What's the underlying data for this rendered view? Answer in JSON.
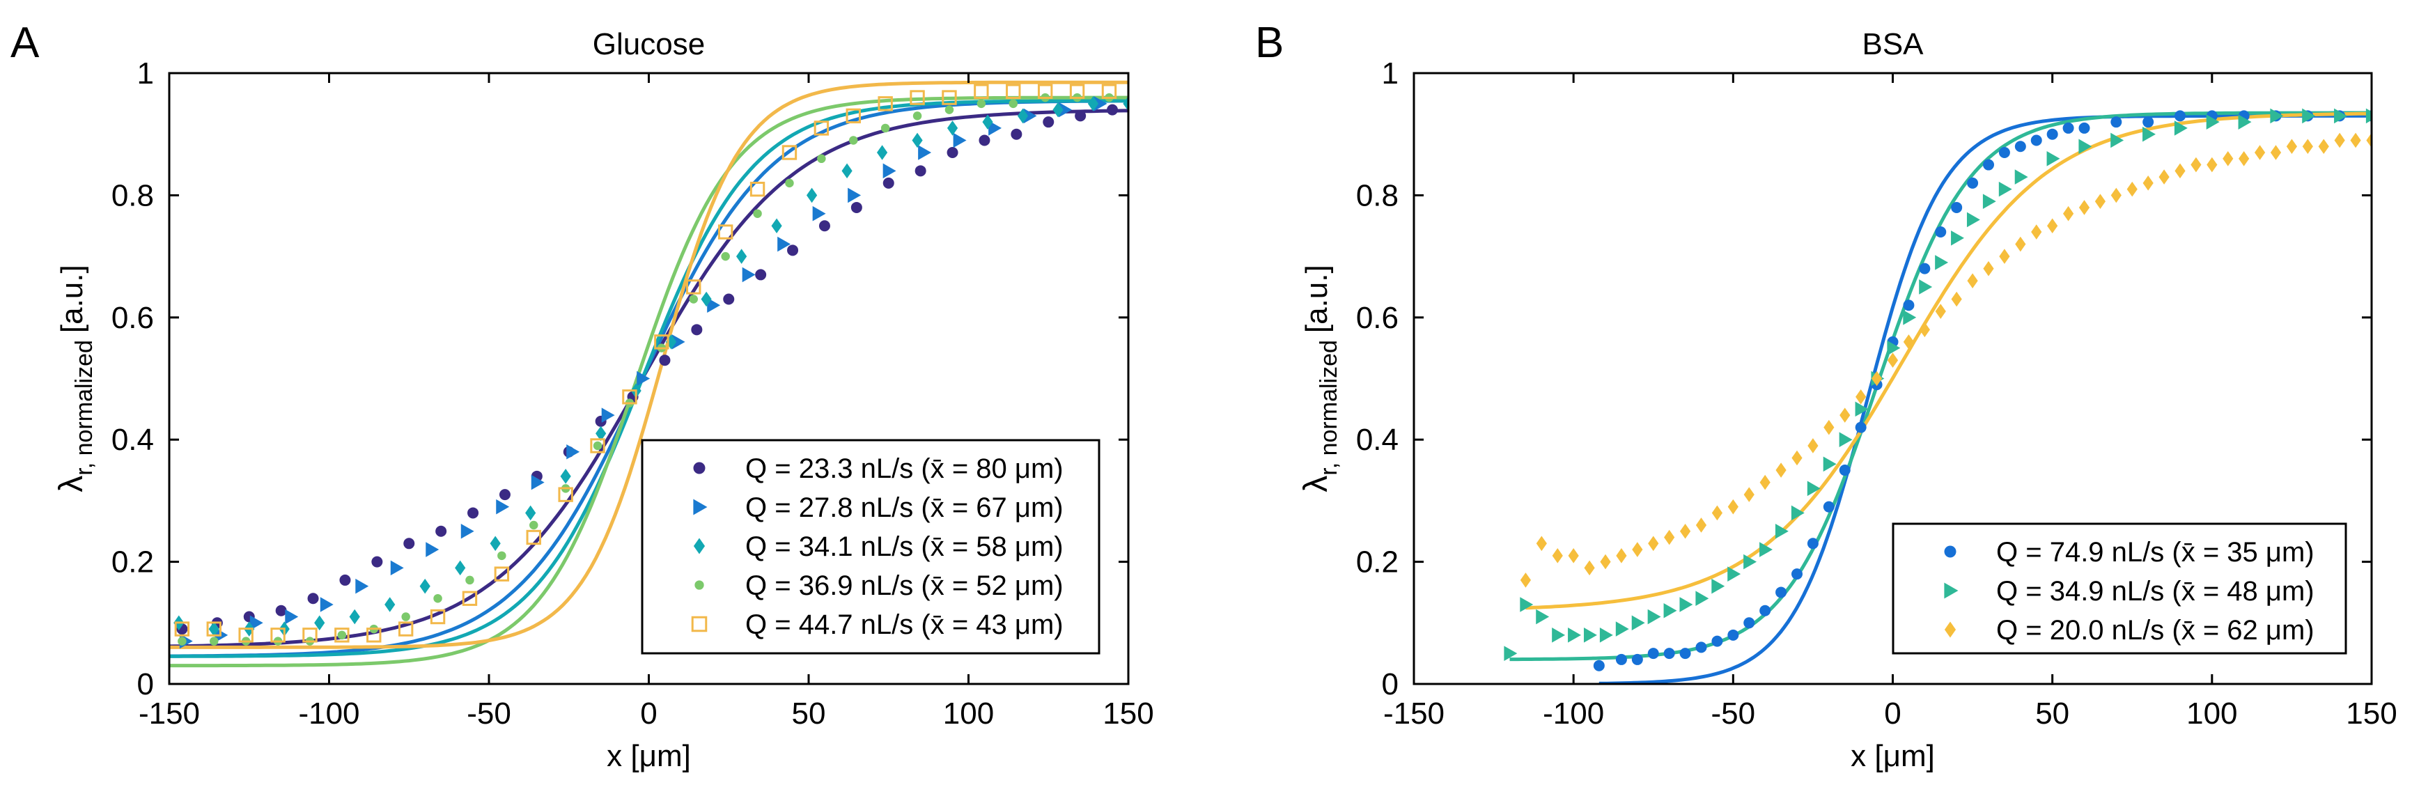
{
  "colors": {
    "c1": "#3B2A84",
    "c2": "#1A7AD0",
    "c3": "#12A8B3",
    "c4": "#7CC96B",
    "c5": "#F2B84A",
    "b1": "#1670D6",
    "b2": "#2FB897",
    "b3": "#F6BE3C"
  },
  "chart_data": [
    {
      "panel_label": "A",
      "type": "scatter",
      "title": "Glucose",
      "xlabel": "x [μm]",
      "ylabel_main": "λ",
      "ylabel_sub": "r, normalized",
      "ylabel_unit": "[a.u.]",
      "xlim": [
        -150,
        150
      ],
      "ylim": [
        0,
        1
      ],
      "xticks": [
        -150,
        -100,
        -50,
        0,
        50,
        100,
        150
      ],
      "yticks": [
        0,
        0.2,
        0.4,
        0.6,
        0.8,
        1
      ],
      "xtick_labels": [
        "-150",
        "-100",
        "-50",
        "0",
        "50",
        "100",
        "150"
      ],
      "ytick_labels": [
        "0",
        "0.2",
        "0.4",
        "0.6",
        "0.8",
        "1"
      ],
      "legend_position": "bottom-right",
      "series": [
        {
          "name": "Q = 23.3 nL/s (x̄ = 80 μm)",
          "marker": "circle",
          "color_key": "c1",
          "fit": {
            "lo": 0.06,
            "hi": 0.94,
            "x0": -2,
            "w": 52
          },
          "x": [
            -146,
            -135,
            -125,
            -115,
            -105,
            -95,
            -85,
            -75,
            -65,
            -55,
            -45,
            -35,
            -25,
            -15,
            -5,
            5,
            15,
            25,
            35,
            45,
            55,
            65,
            75,
            85,
            95,
            105,
            115,
            125,
            135,
            145
          ],
          "y": [
            0.09,
            0.1,
            0.11,
            0.12,
            0.14,
            0.17,
            0.2,
            0.23,
            0.25,
            0.28,
            0.31,
            0.34,
            0.38,
            0.43,
            0.47,
            0.53,
            0.58,
            0.63,
            0.67,
            0.71,
            0.75,
            0.78,
            0.82,
            0.84,
            0.87,
            0.89,
            0.9,
            0.92,
            0.93,
            0.94
          ]
        },
        {
          "name": "Q = 27.8 nL/s (x̄ = 67 μm)",
          "marker": "triangle-right",
          "color_key": "c2",
          "fit": {
            "lo": 0.045,
            "hi": 0.955,
            "x0": -2,
            "w": 44
          },
          "x": [
            -145,
            -134,
            -123,
            -112,
            -101,
            -90,
            -79,
            -68,
            -57,
            -46,
            -35,
            -24,
            -13,
            -2,
            9,
            20,
            31,
            42,
            53,
            64,
            75,
            86,
            97,
            108,
            119,
            130,
            141
          ],
          "y": [
            0.07,
            0.08,
            0.1,
            0.11,
            0.13,
            0.16,
            0.19,
            0.22,
            0.25,
            0.29,
            0.33,
            0.38,
            0.44,
            0.5,
            0.56,
            0.62,
            0.67,
            0.72,
            0.77,
            0.8,
            0.84,
            0.87,
            0.89,
            0.91,
            0.93,
            0.94,
            0.95
          ]
        },
        {
          "name": "Q = 34.1 nL/s (x̄ = 58 μm)",
          "marker": "diamond",
          "color_key": "c3",
          "fit": {
            "lo": 0.045,
            "hi": 0.955,
            "x0": -2,
            "w": 38
          },
          "x": [
            -147,
            -136,
            -125,
            -114,
            -103,
            -92,
            -81,
            -70,
            -59,
            -48,
            -37,
            -26,
            -15,
            -4,
            7,
            18,
            29,
            40,
            51,
            62,
            73,
            84,
            95,
            106,
            117,
            128,
            139,
            150
          ],
          "y": [
            0.1,
            0.09,
            0.09,
            0.09,
            0.1,
            0.11,
            0.13,
            0.16,
            0.19,
            0.23,
            0.28,
            0.34,
            0.41,
            0.48,
            0.56,
            0.63,
            0.7,
            0.75,
            0.8,
            0.84,
            0.87,
            0.89,
            0.91,
            0.92,
            0.93,
            0.94,
            0.95,
            0.95
          ]
        },
        {
          "name": "Q = 36.9 nL/s (x̄ = 52 μm)",
          "marker": "dot",
          "color_key": "c4",
          "fit": {
            "lo": 0.03,
            "hi": 0.96,
            "x0": -4,
            "w": 33
          },
          "x": [
            -146,
            -136,
            -126,
            -116,
            -106,
            -96,
            -86,
            -76,
            -66,
            -56,
            -46,
            -36,
            -26,
            -16,
            -6,
            4,
            14,
            24,
            34,
            44,
            54,
            64,
            74,
            84,
            94,
            104,
            114,
            124,
            134,
            144
          ],
          "y": [
            0.07,
            0.07,
            0.07,
            0.07,
            0.07,
            0.08,
            0.09,
            0.11,
            0.14,
            0.17,
            0.21,
            0.26,
            0.32,
            0.39,
            0.46,
            0.55,
            0.63,
            0.7,
            0.77,
            0.82,
            0.86,
            0.89,
            0.91,
            0.93,
            0.94,
            0.95,
            0.95,
            0.96,
            0.96,
            0.96
          ]
        },
        {
          "name": "Q = 44.7 nL/s (x̄ = 43 μm)",
          "marker": "square",
          "color_key": "c5",
          "fit": {
            "lo": 0.06,
            "hi": 0.985,
            "x0": 4,
            "w": 27
          },
          "x": [
            -146,
            -136,
            -126,
            -116,
            -106,
            -96,
            -86,
            -76,
            -66,
            -56,
            -46,
            -36,
            -26,
            -16,
            -6,
            4,
            14,
            24,
            34,
            44,
            54,
            64,
            74,
            84,
            94,
            104,
            114,
            124,
            134,
            144
          ],
          "y": [
            0.09,
            0.09,
            0.08,
            0.08,
            0.08,
            0.08,
            0.08,
            0.09,
            0.11,
            0.14,
            0.18,
            0.24,
            0.31,
            0.39,
            0.47,
            0.56,
            0.65,
            0.74,
            0.81,
            0.87,
            0.91,
            0.93,
            0.95,
            0.96,
            0.96,
            0.97,
            0.97,
            0.97,
            0.97,
            0.97
          ]
        }
      ]
    },
    {
      "panel_label": "B",
      "type": "scatter",
      "title": "BSA",
      "xlabel": "x [μm]",
      "ylabel_main": "λ",
      "ylabel_sub": "r, normalized",
      "ylabel_unit": "[a.u.]",
      "xlim": [
        -150,
        150
      ],
      "ylim": [
        0,
        1
      ],
      "xticks": [
        -150,
        -100,
        -50,
        0,
        50,
        100,
        150
      ],
      "yticks": [
        0,
        0.2,
        0.4,
        0.6,
        0.8,
        1
      ],
      "xtick_labels": [
        "-150",
        "-100",
        "-50",
        "0",
        "50",
        "100",
        "150"
      ],
      "ytick_labels": [
        "0",
        "0.2",
        "0.4",
        "0.6",
        "0.8",
        "1"
      ],
      "legend_position": "bottom-right",
      "series": [
        {
          "name": "Q = 74.9 nL/s (x̄ = 35 μm)",
          "marker": "circle",
          "color_key": "b1",
          "fit": {
            "lo": 0.0,
            "hi": 0.93,
            "x0": -8,
            "w": 26,
            "xmin": -92
          },
          "x": [
            -92,
            -85,
            -80,
            -75,
            -70,
            -65,
            -60,
            -55,
            -50,
            -45,
            -40,
            -35,
            -30,
            -25,
            -20,
            -15,
            -10,
            -5,
            0,
            5,
            10,
            15,
            20,
            25,
            30,
            35,
            40,
            45,
            50,
            55,
            60,
            70,
            80,
            90,
            100,
            110,
            120,
            130,
            140,
            150
          ],
          "y": [
            0.03,
            0.04,
            0.04,
            0.05,
            0.05,
            0.05,
            0.06,
            0.07,
            0.08,
            0.1,
            0.12,
            0.15,
            0.18,
            0.23,
            0.29,
            0.35,
            0.42,
            0.49,
            0.56,
            0.62,
            0.68,
            0.74,
            0.78,
            0.82,
            0.85,
            0.87,
            0.88,
            0.89,
            0.9,
            0.91,
            0.91,
            0.92,
            0.92,
            0.93,
            0.93,
            0.93,
            0.93,
            0.93,
            0.93,
            0.93
          ]
        },
        {
          "name": "Q = 34.9 nL/s (x̄ = 48 μm)",
          "marker": "triangle-right",
          "color_key": "b2",
          "fit": {
            "lo": 0.04,
            "hi": 0.935,
            "x0": -5,
            "w": 32,
            "xmin": -120
          },
          "x": [
            -120,
            -115,
            -110,
            -105,
            -100,
            -95,
            -90,
            -85,
            -80,
            -75,
            -70,
            -65,
            -60,
            -55,
            -50,
            -45,
            -40,
            -35,
            -30,
            -25,
            -20,
            -15,
            -10,
            -5,
            0,
            5,
            10,
            15,
            20,
            25,
            30,
            35,
            40,
            50,
            60,
            70,
            80,
            90,
            100,
            110,
            120,
            130,
            140,
            150
          ],
          "y": [
            0.05,
            0.13,
            0.11,
            0.08,
            0.08,
            0.08,
            0.08,
            0.09,
            0.1,
            0.11,
            0.12,
            0.13,
            0.14,
            0.16,
            0.18,
            0.2,
            0.22,
            0.25,
            0.28,
            0.32,
            0.36,
            0.4,
            0.45,
            0.5,
            0.55,
            0.6,
            0.65,
            0.69,
            0.73,
            0.76,
            0.79,
            0.81,
            0.83,
            0.86,
            0.88,
            0.89,
            0.9,
            0.91,
            0.92,
            0.92,
            0.93,
            0.93,
            0.93,
            0.93
          ]
        },
        {
          "name": "Q = 20.0 nL/s (x̄ = 62 μm)",
          "marker": "diamond",
          "color_key": "b3",
          "fit": {
            "lo": 0.12,
            "hi": 0.935,
            "x0": 3,
            "w": 50,
            "xmin": -115
          },
          "x": [
            -115,
            -110,
            -105,
            -100,
            -95,
            -90,
            -85,
            -80,
            -75,
            -70,
            -65,
            -60,
            -55,
            -50,
            -45,
            -40,
            -35,
            -30,
            -25,
            -20,
            -15,
            -10,
            -5,
            0,
            5,
            10,
            15,
            20,
            25,
            30,
            35,
            40,
            45,
            50,
            55,
            60,
            65,
            70,
            75,
            80,
            85,
            90,
            95,
            100,
            105,
            110,
            115,
            120,
            125,
            130,
            135,
            140,
            145,
            150
          ],
          "y": [
            0.17,
            0.23,
            0.21,
            0.21,
            0.19,
            0.2,
            0.21,
            0.22,
            0.23,
            0.24,
            0.25,
            0.26,
            0.28,
            0.29,
            0.31,
            0.33,
            0.35,
            0.37,
            0.39,
            0.42,
            0.44,
            0.47,
            0.5,
            0.53,
            0.56,
            0.58,
            0.61,
            0.63,
            0.66,
            0.68,
            0.7,
            0.72,
            0.74,
            0.75,
            0.77,
            0.78,
            0.79,
            0.8,
            0.81,
            0.82,
            0.83,
            0.84,
            0.85,
            0.85,
            0.86,
            0.86,
            0.87,
            0.87,
            0.88,
            0.88,
            0.88,
            0.89,
            0.89,
            0.89
          ]
        }
      ]
    }
  ]
}
